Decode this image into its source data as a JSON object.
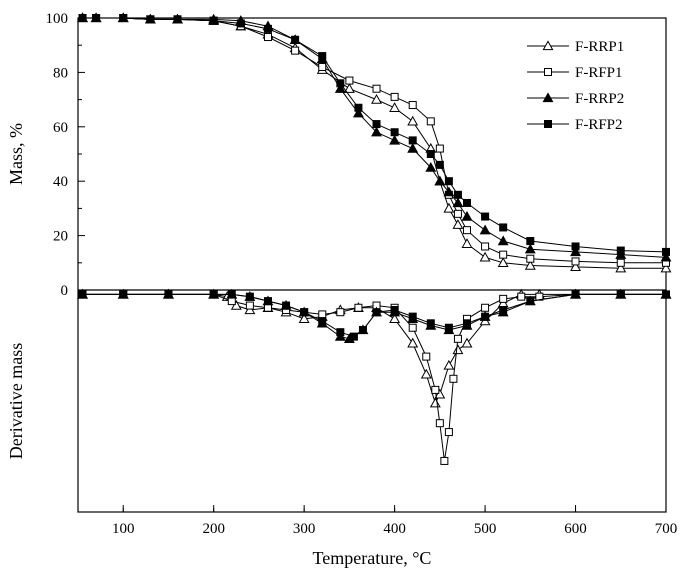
{
  "chart_data": {
    "type": "line",
    "xlabel": "Temperature, °C",
    "xlim": [
      50,
      700
    ],
    "x_ticks": [
      100,
      200,
      300,
      400,
      500,
      600,
      700
    ],
    "grid": false,
    "legend_placement": "top-right",
    "series_styles": [
      {
        "name": "F-RRP1",
        "marker": "open-triangle"
      },
      {
        "name": "F-RFP1",
        "marker": "open-square"
      },
      {
        "name": "F-RRP2",
        "marker": "filled-triangle"
      },
      {
        "name": "F-RFP2",
        "marker": "filled-square"
      }
    ],
    "panels": [
      {
        "id": "mass",
        "ylabel": "Mass, %",
        "ylim": [
          0,
          100
        ],
        "y_ticks": [
          0,
          20,
          40,
          60,
          80,
          100
        ],
        "series": [
          {
            "name": "F-RRP1",
            "points": [
              [
                55,
                100
              ],
              [
                70,
                100
              ],
              [
                100,
                100
              ],
              [
                130,
                99.5
              ],
              [
                160,
                99.5
              ],
              [
                200,
                99
              ],
              [
                230,
                97
              ],
              [
                260,
                94
              ],
              [
                290,
                89
              ],
              [
                320,
                81
              ],
              [
                350,
                74
              ],
              [
                380,
                70
              ],
              [
                400,
                67
              ],
              [
                420,
                62
              ],
              [
                440,
                52
              ],
              [
                450,
                40
              ],
              [
                460,
                30
              ],
              [
                470,
                24
              ],
              [
                480,
                17
              ],
              [
                500,
                12
              ],
              [
                520,
                10
              ],
              [
                550,
                9
              ],
              [
                600,
                8.5
              ],
              [
                650,
                8
              ],
              [
                700,
                8
              ]
            ]
          },
          {
            "name": "F-RFP1",
            "points": [
              [
                55,
                100
              ],
              [
                70,
                100
              ],
              [
                100,
                100
              ],
              [
                130,
                99.5
              ],
              [
                160,
                99.5
              ],
              [
                200,
                99
              ],
              [
                230,
                97
              ],
              [
                260,
                93
              ],
              [
                290,
                88
              ],
              [
                320,
                82
              ],
              [
                350,
                77
              ],
              [
                380,
                74
              ],
              [
                400,
                71
              ],
              [
                420,
                68
              ],
              [
                440,
                62
              ],
              [
                450,
                52
              ],
              [
                460,
                35
              ],
              [
                470,
                28
              ],
              [
                480,
                22
              ],
              [
                500,
                16
              ],
              [
                520,
                13
              ],
              [
                550,
                11.5
              ],
              [
                600,
                10.5
              ],
              [
                650,
                10
              ],
              [
                700,
                10
              ]
            ]
          },
          {
            "name": "F-RRP2",
            "points": [
              [
                55,
                100
              ],
              [
                70,
                100
              ],
              [
                100,
                100
              ],
              [
                130,
                99.5
              ],
              [
                160,
                99.5
              ],
              [
                200,
                99.5
              ],
              [
                230,
                99
              ],
              [
                260,
                97
              ],
              [
                290,
                92
              ],
              [
                320,
                85
              ],
              [
                340,
                74
              ],
              [
                360,
                65
              ],
              [
                380,
                58
              ],
              [
                400,
                55
              ],
              [
                420,
                52
              ],
              [
                440,
                45
              ],
              [
                450,
                40
              ],
              [
                460,
                36
              ],
              [
                470,
                32
              ],
              [
                480,
                27
              ],
              [
                500,
                22
              ],
              [
                520,
                18
              ],
              [
                550,
                15
              ],
              [
                600,
                14
              ],
              [
                650,
                13
              ],
              [
                700,
                12
              ]
            ]
          },
          {
            "name": "F-RFP2",
            "points": [
              [
                55,
                100
              ],
              [
                70,
                100
              ],
              [
                100,
                100
              ],
              [
                130,
                99.5
              ],
              [
                160,
                99.5
              ],
              [
                200,
                99
              ],
              [
                230,
                98
              ],
              [
                260,
                96
              ],
              [
                290,
                92
              ],
              [
                320,
                86
              ],
              [
                340,
                76
              ],
              [
                360,
                67
              ],
              [
                380,
                61
              ],
              [
                400,
                58
              ],
              [
                420,
                55
              ],
              [
                440,
                50
              ],
              [
                450,
                46
              ],
              [
                460,
                40
              ],
              [
                470,
                35
              ],
              [
                480,
                32
              ],
              [
                500,
                27
              ],
              [
                520,
                23
              ],
              [
                550,
                18
              ],
              [
                600,
                16
              ],
              [
                650,
                14.5
              ],
              [
                700,
                14
              ]
            ]
          }
        ]
      },
      {
        "id": "derivative",
        "ylabel": "Derivative mass",
        "ylim": [
          -100,
          0
        ],
        "series": [
          {
            "name": "F-RRP1",
            "points": [
              [
                55,
                -2
              ],
              [
                100,
                -2
              ],
              [
                150,
                -2
              ],
              [
                200,
                -2
              ],
              [
                215,
                -3
              ],
              [
                225,
                -7
              ],
              [
                240,
                -9
              ],
              [
                260,
                -8
              ],
              [
                280,
                -10
              ],
              [
                300,
                -13
              ],
              [
                320,
                -12
              ],
              [
                340,
                -9
              ],
              [
                360,
                -8
              ],
              [
                380,
                -8
              ],
              [
                400,
                -13
              ],
              [
                420,
                -24
              ],
              [
                435,
                -38
              ],
              [
                445,
                -51
              ],
              [
                450,
                -47
              ],
              [
                460,
                -34
              ],
              [
                470,
                -27
              ],
              [
                480,
                -24
              ],
              [
                500,
                -14
              ],
              [
                520,
                -6
              ],
              [
                540,
                -2
              ],
              [
                560,
                -2
              ],
              [
                600,
                -2
              ],
              [
                650,
                -2
              ],
              [
                700,
                -2
              ]
            ]
          },
          {
            "name": "F-RFP1",
            "points": [
              [
                55,
                -2
              ],
              [
                100,
                -2
              ],
              [
                150,
                -2
              ],
              [
                200,
                -2
              ],
              [
                220,
                -5
              ],
              [
                240,
                -7
              ],
              [
                260,
                -8
              ],
              [
                280,
                -9
              ],
              [
                300,
                -10
              ],
              [
                320,
                -11
              ],
              [
                340,
                -10
              ],
              [
                360,
                -8
              ],
              [
                380,
                -7
              ],
              [
                400,
                -8
              ],
              [
                420,
                -17
              ],
              [
                435,
                -30
              ],
              [
                445,
                -45
              ],
              [
                450,
                -60
              ],
              [
                455,
                -77
              ],
              [
                460,
                -64
              ],
              [
                465,
                -40
              ],
              [
                470,
                -22
              ],
              [
                480,
                -13
              ],
              [
                500,
                -8
              ],
              [
                520,
                -4
              ],
              [
                540,
                -3
              ],
              [
                560,
                -3
              ],
              [
                600,
                -2
              ],
              [
                650,
                -2
              ],
              [
                700,
                -2
              ]
            ]
          },
          {
            "name": "F-RRP2",
            "points": [
              [
                55,
                -2
              ],
              [
                100,
                -2
              ],
              [
                150,
                -2
              ],
              [
                200,
                -2
              ],
              [
                220,
                -2
              ],
              [
                240,
                -3
              ],
              [
                260,
                -5
              ],
              [
                280,
                -7
              ],
              [
                300,
                -10
              ],
              [
                320,
                -15
              ],
              [
                340,
                -21
              ],
              [
                350,
                -22
              ],
              [
                365,
                -18
              ],
              [
                380,
                -10
              ],
              [
                400,
                -10
              ],
              [
                420,
                -13
              ],
              [
                440,
                -16
              ],
              [
                460,
                -18
              ],
              [
                480,
                -16
              ],
              [
                500,
                -12
              ],
              [
                520,
                -10
              ],
              [
                550,
                -5
              ],
              [
                600,
                -2
              ],
              [
                650,
                -2
              ],
              [
                700,
                -2
              ]
            ]
          },
          {
            "name": "F-RFP2",
            "points": [
              [
                55,
                -2
              ],
              [
                100,
                -2
              ],
              [
                150,
                -2
              ],
              [
                200,
                -2
              ],
              [
                220,
                -2
              ],
              [
                240,
                -3
              ],
              [
                260,
                -5
              ],
              [
                280,
                -7
              ],
              [
                300,
                -10
              ],
              [
                320,
                -14
              ],
              [
                340,
                -19
              ],
              [
                355,
                -21
              ],
              [
                365,
                -18
              ],
              [
                380,
                -10
              ],
              [
                400,
                -9
              ],
              [
                420,
                -12
              ],
              [
                440,
                -15
              ],
              [
                460,
                -17
              ],
              [
                480,
                -15
              ],
              [
                500,
                -12
              ],
              [
                520,
                -9
              ],
              [
                550,
                -5
              ],
              [
                600,
                -2
              ],
              [
                650,
                -2
              ],
              [
                700,
                -2
              ]
            ]
          }
        ]
      }
    ]
  }
}
